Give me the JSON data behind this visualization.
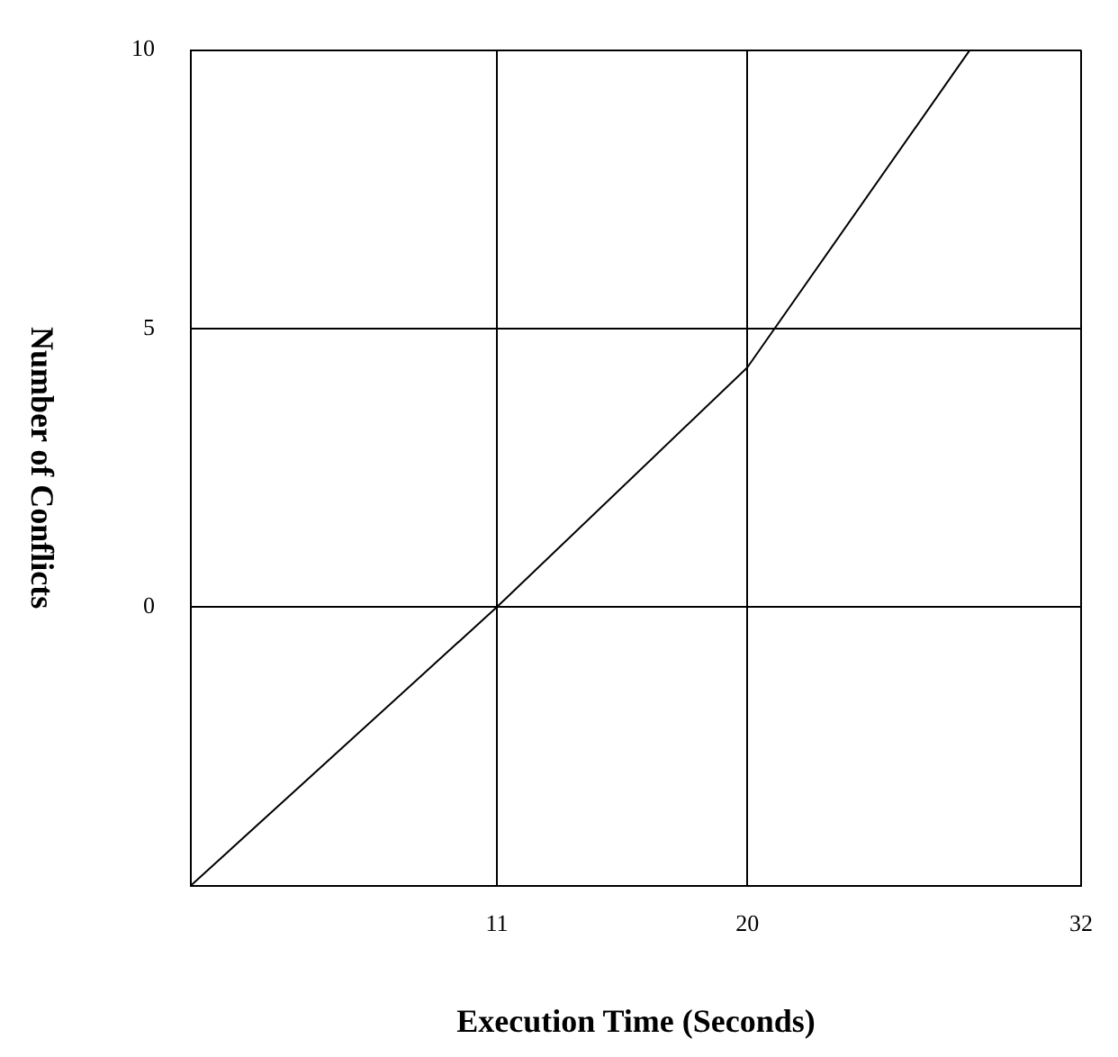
{
  "chart_data": {
    "type": "line",
    "xlabel": "Execution Time (Seconds)",
    "ylabel": "Number of Conflicts",
    "x": [
      0,
      11,
      20,
      28
    ],
    "series": [
      {
        "color": "#000000",
        "values": [
          -5,
          0,
          4.3,
          10
        ]
      }
    ],
    "xlim": [
      0,
      32
    ],
    "xticks": [
      11,
      20,
      32
    ],
    "ylim": [
      -5,
      10
    ],
    "yticks": [
      {
        "value": -5,
        "label": null
      },
      0,
      5,
      10
    ],
    "grid": true,
    "marker": "none",
    "line_style": "solid"
  }
}
